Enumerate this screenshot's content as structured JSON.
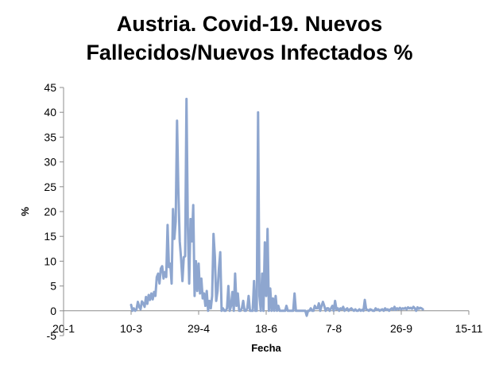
{
  "chart_data": {
    "type": "line",
    "title_lines": [
      "Austria. Covid-19. Nuevos",
      "Fallecidos/Nuevos Infectados %"
    ],
    "xlabel": "Fecha",
    "ylabel": "%",
    "ylim": [
      -5,
      45
    ],
    "yticks": [
      -5,
      0,
      5,
      10,
      15,
      20,
      25,
      30,
      35,
      40,
      45
    ],
    "xlim": [
      "2020-01-20",
      "2020-11-15"
    ],
    "xticks": [
      {
        "date": "2020-01-20",
        "label": "20-1"
      },
      {
        "date": "2020-03-10",
        "label": "10-3"
      },
      {
        "date": "2020-04-29",
        "label": "29-4"
      },
      {
        "date": "2020-06-18",
        "label": "18-6"
      },
      {
        "date": "2020-08-07",
        "label": "7-8"
      },
      {
        "date": "2020-09-26",
        "label": "26-9"
      },
      {
        "date": "2020-11-15",
        "label": "15-11"
      }
    ],
    "grid": false,
    "series": [
      {
        "color": "#8EA6CF",
        "points": [
          [
            "2020-03-10",
            1.2
          ],
          [
            "2020-03-11",
            0.0
          ],
          [
            "2020-03-12",
            0.5
          ],
          [
            "2020-03-13",
            0.0
          ],
          [
            "2020-03-14",
            0.3
          ],
          [
            "2020-03-15",
            1.8
          ],
          [
            "2020-03-16",
            0.8
          ],
          [
            "2020-03-17",
            0.3
          ],
          [
            "2020-03-18",
            1.9
          ],
          [
            "2020-03-19",
            1.5
          ],
          [
            "2020-03-20",
            0.8
          ],
          [
            "2020-03-21",
            2.8
          ],
          [
            "2020-03-22",
            1.4
          ],
          [
            "2020-03-23",
            3.2
          ],
          [
            "2020-03-24",
            2.2
          ],
          [
            "2020-03-25",
            3.5
          ],
          [
            "2020-03-26",
            2.3
          ],
          [
            "2020-03-27",
            3.8
          ],
          [
            "2020-03-28",
            3.0
          ],
          [
            "2020-03-29",
            6.8
          ],
          [
            "2020-03-30",
            7.5
          ],
          [
            "2020-03-31",
            5.5
          ],
          [
            "2020-04-01",
            8.5
          ],
          [
            "2020-04-02",
            9.0
          ],
          [
            "2020-04-03",
            6.5
          ],
          [
            "2020-04-04",
            7.8
          ],
          [
            "2020-04-05",
            6.8
          ],
          [
            "2020-04-06",
            17.3
          ],
          [
            "2020-04-07",
            8.8
          ],
          [
            "2020-04-08",
            9.5
          ],
          [
            "2020-04-09",
            5.5
          ],
          [
            "2020-04-10",
            20.5
          ],
          [
            "2020-04-11",
            14.5
          ],
          [
            "2020-04-12",
            18.0
          ],
          [
            "2020-04-13",
            38.3
          ],
          [
            "2020-04-14",
            24.0
          ],
          [
            "2020-04-15",
            14.0
          ],
          [
            "2020-04-16",
            10.5
          ],
          [
            "2020-04-17",
            6.0
          ],
          [
            "2020-04-18",
            10.8
          ],
          [
            "2020-04-19",
            11.0
          ],
          [
            "2020-04-20",
            42.7
          ],
          [
            "2020-04-21",
            17.0
          ],
          [
            "2020-04-22",
            5.5
          ],
          [
            "2020-04-23",
            18.5
          ],
          [
            "2020-04-24",
            14.0
          ],
          [
            "2020-04-25",
            21.3
          ],
          [
            "2020-04-26",
            3.0
          ],
          [
            "2020-04-27",
            10.0
          ],
          [
            "2020-04-28",
            4.0
          ],
          [
            "2020-04-29",
            9.5
          ],
          [
            "2020-04-30",
            3.5
          ],
          [
            "2020-05-01",
            6.5
          ],
          [
            "2020-05-02",
            2.5
          ],
          [
            "2020-05-03",
            3.5
          ],
          [
            "2020-05-04",
            1.0
          ],
          [
            "2020-05-05",
            4.0
          ],
          [
            "2020-05-06",
            0.0
          ],
          [
            "2020-05-07",
            2.0
          ],
          [
            "2020-05-08",
            0.5
          ],
          [
            "2020-05-09",
            3.0
          ],
          [
            "2020-05-10",
            15.5
          ],
          [
            "2020-05-11",
            11.0
          ],
          [
            "2020-05-12",
            2.0
          ],
          [
            "2020-05-13",
            4.0
          ],
          [
            "2020-05-14",
            8.5
          ],
          [
            "2020-05-15",
            11.8
          ],
          [
            "2020-05-16",
            0.0
          ],
          [
            "2020-05-17",
            0.5
          ],
          [
            "2020-05-18",
            0.0
          ],
          [
            "2020-05-19",
            0.0
          ],
          [
            "2020-05-20",
            0.5
          ],
          [
            "2020-05-21",
            5.0
          ],
          [
            "2020-05-22",
            0.0
          ],
          [
            "2020-05-23",
            1.0
          ],
          [
            "2020-05-24",
            3.8
          ],
          [
            "2020-05-25",
            0.0
          ],
          [
            "2020-05-26",
            7.5
          ],
          [
            "2020-05-27",
            1.0
          ],
          [
            "2020-05-28",
            3.5
          ],
          [
            "2020-05-29",
            0.0
          ],
          [
            "2020-05-30",
            0.0
          ],
          [
            "2020-05-31",
            0.5
          ],
          [
            "2020-06-01",
            2.0
          ],
          [
            "2020-06-02",
            0.0
          ],
          [
            "2020-06-03",
            0.0
          ],
          [
            "2020-06-04",
            0.5
          ],
          [
            "2020-06-05",
            3.0
          ],
          [
            "2020-06-06",
            0.0
          ],
          [
            "2020-06-07",
            0.0
          ],
          [
            "2020-06-08",
            0.0
          ],
          [
            "2020-06-09",
            6.0
          ],
          [
            "2020-06-10",
            0.0
          ],
          [
            "2020-06-11",
            0.0
          ],
          [
            "2020-06-12",
            40.0
          ],
          [
            "2020-06-13",
            3.0
          ],
          [
            "2020-06-14",
            0.0
          ],
          [
            "2020-06-15",
            7.5
          ],
          [
            "2020-06-16",
            0.0
          ],
          [
            "2020-06-17",
            13.8
          ],
          [
            "2020-06-18",
            3.0
          ],
          [
            "2020-06-19",
            16.5
          ],
          [
            "2020-06-20",
            0.0
          ],
          [
            "2020-06-21",
            4.5
          ],
          [
            "2020-06-22",
            0.0
          ],
          [
            "2020-06-23",
            2.5
          ],
          [
            "2020-06-24",
            0.0
          ],
          [
            "2020-06-25",
            3.0
          ],
          [
            "2020-06-26",
            0.0
          ],
          [
            "2020-06-27",
            1.0
          ],
          [
            "2020-06-28",
            0.0
          ],
          [
            "2020-06-29",
            0.0
          ],
          [
            "2020-06-30",
            0.0
          ],
          [
            "2020-07-01",
            0.0
          ],
          [
            "2020-07-02",
            0.0
          ],
          [
            "2020-07-03",
            1.0
          ],
          [
            "2020-07-04",
            0.0
          ],
          [
            "2020-07-05",
            0.0
          ],
          [
            "2020-07-06",
            0.0
          ],
          [
            "2020-07-07",
            0.0
          ],
          [
            "2020-07-08",
            0.0
          ],
          [
            "2020-07-09",
            3.5
          ],
          [
            "2020-07-10",
            0.0
          ],
          [
            "2020-07-11",
            0.0
          ],
          [
            "2020-07-12",
            0.0
          ],
          [
            "2020-07-13",
            0.0
          ],
          [
            "2020-07-14",
            0.0
          ],
          [
            "2020-07-15",
            0.0
          ],
          [
            "2020-07-16",
            0.0
          ],
          [
            "2020-07-17",
            0.0
          ],
          [
            "2020-07-18",
            -1.0
          ],
          [
            "2020-07-19",
            0.0
          ],
          [
            "2020-07-20",
            0.0
          ],
          [
            "2020-07-21",
            0.5
          ],
          [
            "2020-07-22",
            0.0
          ],
          [
            "2020-07-23",
            0.0
          ],
          [
            "2020-07-24",
            1.0
          ],
          [
            "2020-07-25",
            0.5
          ],
          [
            "2020-07-26",
            0.5
          ],
          [
            "2020-07-27",
            1.5
          ],
          [
            "2020-07-28",
            0.0
          ],
          [
            "2020-07-29",
            1.0
          ],
          [
            "2020-07-30",
            1.8
          ],
          [
            "2020-07-31",
            1.0
          ],
          [
            "2020-08-01",
            0.0
          ],
          [
            "2020-08-02",
            0.5
          ],
          [
            "2020-08-03",
            0.5
          ],
          [
            "2020-08-04",
            0.0
          ],
          [
            "2020-08-05",
            0.5
          ],
          [
            "2020-08-06",
            1.0
          ],
          [
            "2020-08-07",
            0.0
          ],
          [
            "2020-08-08",
            2.0
          ],
          [
            "2020-08-09",
            0.3
          ],
          [
            "2020-08-10",
            0.5
          ],
          [
            "2020-08-11",
            0.0
          ],
          [
            "2020-08-12",
            0.5
          ],
          [
            "2020-08-13",
            0.3
          ],
          [
            "2020-08-14",
            0.8
          ],
          [
            "2020-08-15",
            0.0
          ],
          [
            "2020-08-16",
            0.3
          ],
          [
            "2020-08-17",
            0.5
          ],
          [
            "2020-08-18",
            0.0
          ],
          [
            "2020-08-19",
            0.3
          ],
          [
            "2020-08-20",
            0.5
          ],
          [
            "2020-08-21",
            0.2
          ],
          [
            "2020-08-22",
            0.0
          ],
          [
            "2020-08-23",
            0.3
          ],
          [
            "2020-08-24",
            0.0
          ],
          [
            "2020-08-25",
            0.0
          ],
          [
            "2020-08-26",
            0.3
          ],
          [
            "2020-08-27",
            0.0
          ],
          [
            "2020-08-28",
            0.2
          ],
          [
            "2020-08-29",
            0.0
          ],
          [
            "2020-08-30",
            2.2
          ],
          [
            "2020-08-31",
            0.3
          ],
          [
            "2020-09-01",
            0.2
          ],
          [
            "2020-09-02",
            0.0
          ],
          [
            "2020-09-03",
            0.3
          ],
          [
            "2020-09-04",
            0.2
          ],
          [
            "2020-09-05",
            0.0
          ],
          [
            "2020-09-06",
            0.0
          ],
          [
            "2020-09-07",
            0.5
          ],
          [
            "2020-09-08",
            0.2
          ],
          [
            "2020-09-09",
            0.3
          ],
          [
            "2020-09-10",
            0.0
          ],
          [
            "2020-09-11",
            0.2
          ],
          [
            "2020-09-12",
            0.3
          ],
          [
            "2020-09-13",
            0.0
          ],
          [
            "2020-09-14",
            0.5
          ],
          [
            "2020-09-15",
            0.2
          ],
          [
            "2020-09-16",
            0.3
          ],
          [
            "2020-09-17",
            0.0
          ],
          [
            "2020-09-18",
            0.3
          ],
          [
            "2020-09-19",
            0.5
          ],
          [
            "2020-09-20",
            0.2
          ],
          [
            "2020-09-21",
            0.8
          ],
          [
            "2020-09-22",
            0.2
          ],
          [
            "2020-09-23",
            0.5
          ],
          [
            "2020-09-24",
            0.3
          ],
          [
            "2020-09-25",
            0.6
          ],
          [
            "2020-09-26",
            0.3
          ],
          [
            "2020-09-27",
            0.5
          ],
          [
            "2020-09-28",
            0.4
          ],
          [
            "2020-09-29",
            0.6
          ],
          [
            "2020-09-30",
            0.3
          ],
          [
            "2020-10-01",
            0.7
          ],
          [
            "2020-10-02",
            0.5
          ],
          [
            "2020-10-03",
            0.6
          ],
          [
            "2020-10-04",
            0.4
          ],
          [
            "2020-10-05",
            0.8
          ],
          [
            "2020-10-06",
            0.5
          ],
          [
            "2020-10-07",
            0.0
          ],
          [
            "2020-10-08",
            0.7
          ],
          [
            "2020-10-09",
            0.4
          ],
          [
            "2020-10-10",
            0.6
          ],
          [
            "2020-10-11",
            0.5
          ],
          [
            "2020-10-12",
            0.3
          ]
        ]
      }
    ]
  }
}
